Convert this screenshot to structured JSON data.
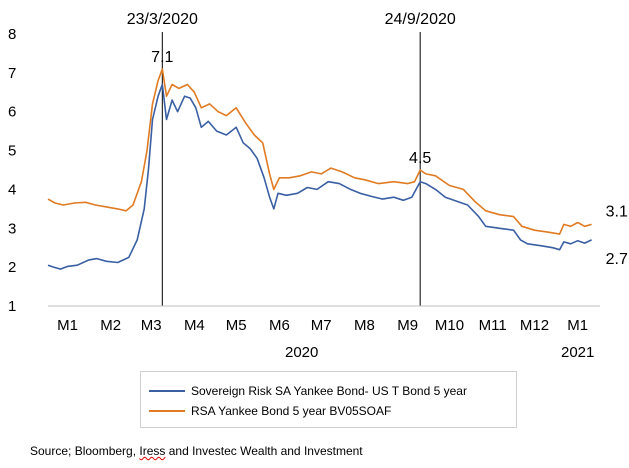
{
  "chart_data": {
    "type": "line",
    "ylim": [
      1,
      8
    ],
    "yticks": [
      "1",
      "2",
      "3",
      "4",
      "5",
      "6",
      "7",
      "8"
    ],
    "xlim": [
      "2020-01-01",
      "2021-01-31"
    ],
    "xticks": [
      {
        "label": "M1",
        "date": "2020-01-15"
      },
      {
        "label": "M2",
        "date": "2020-02-15"
      },
      {
        "label": "M3",
        "date": "2020-03-15"
      },
      {
        "label": "M4",
        "date": "2020-04-15"
      },
      {
        "label": "M5",
        "date": "2020-05-15"
      },
      {
        "label": "M6",
        "date": "2020-06-15"
      },
      {
        "label": "M7",
        "date": "2020-07-15"
      },
      {
        "label": "M8",
        "date": "2020-08-15"
      },
      {
        "label": "M9",
        "date": "2020-09-15"
      },
      {
        "label": "M10",
        "date": "2020-10-15"
      },
      {
        "label": "M11",
        "date": "2020-11-15"
      },
      {
        "label": "M12",
        "date": "2020-12-15"
      },
      {
        "label": "M1",
        "date": "2021-01-15"
      }
    ],
    "year_labels": [
      {
        "label": "2020",
        "date": "2020-07-01"
      },
      {
        "label": "2021",
        "date": "2021-01-15"
      }
    ],
    "series": [
      {
        "name": "Sovereign Risk SA Yankee Bond- US T Bond 5 year",
        "color": "#3a5fa3",
        "points": [
          [
            "2020-01-01",
            2.05
          ],
          [
            "2020-01-05",
            2.0
          ],
          [
            "2020-01-10",
            1.95
          ],
          [
            "2020-01-15",
            2.02
          ],
          [
            "2020-01-22",
            2.05
          ],
          [
            "2020-01-30",
            2.18
          ],
          [
            "2020-02-05",
            2.22
          ],
          [
            "2020-02-12",
            2.15
          ],
          [
            "2020-02-20",
            2.12
          ],
          [
            "2020-02-28",
            2.25
          ],
          [
            "2020-03-05",
            2.7
          ],
          [
            "2020-03-10",
            3.5
          ],
          [
            "2020-03-13",
            4.5
          ],
          [
            "2020-03-16",
            5.8
          ],
          [
            "2020-03-20",
            6.4
          ],
          [
            "2020-03-23",
            6.7
          ],
          [
            "2020-03-26",
            5.8
          ],
          [
            "2020-03-30",
            6.3
          ],
          [
            "2020-04-03",
            6.0
          ],
          [
            "2020-04-08",
            6.4
          ],
          [
            "2020-04-12",
            6.35
          ],
          [
            "2020-04-16",
            6.1
          ],
          [
            "2020-04-20",
            5.6
          ],
          [
            "2020-04-25",
            5.75
          ],
          [
            "2020-05-01",
            5.5
          ],
          [
            "2020-05-08",
            5.4
          ],
          [
            "2020-05-15",
            5.6
          ],
          [
            "2020-05-20",
            5.2
          ],
          [
            "2020-05-25",
            5.05
          ],
          [
            "2020-05-30",
            4.8
          ],
          [
            "2020-06-04",
            4.3
          ],
          [
            "2020-06-08",
            3.8
          ],
          [
            "2020-06-11",
            3.5
          ],
          [
            "2020-06-14",
            3.9
          ],
          [
            "2020-06-20",
            3.85
          ],
          [
            "2020-06-28",
            3.9
          ],
          [
            "2020-07-05",
            4.05
          ],
          [
            "2020-07-12",
            4.0
          ],
          [
            "2020-07-20",
            4.2
          ],
          [
            "2020-07-28",
            4.15
          ],
          [
            "2020-08-05",
            4.0
          ],
          [
            "2020-08-12",
            3.9
          ],
          [
            "2020-08-20",
            3.82
          ],
          [
            "2020-08-28",
            3.75
          ],
          [
            "2020-09-05",
            3.8
          ],
          [
            "2020-09-12",
            3.72
          ],
          [
            "2020-09-18",
            3.8
          ],
          [
            "2020-09-24",
            4.2
          ],
          [
            "2020-09-28",
            4.15
          ],
          [
            "2020-10-05",
            4.0
          ],
          [
            "2020-10-12",
            3.8
          ],
          [
            "2020-10-20",
            3.7
          ],
          [
            "2020-10-28",
            3.6
          ],
          [
            "2020-11-05",
            3.3
          ],
          [
            "2020-11-10",
            3.05
          ],
          [
            "2020-11-20",
            3.0
          ],
          [
            "2020-11-30",
            2.95
          ],
          [
            "2020-12-05",
            2.7
          ],
          [
            "2020-12-10",
            2.6
          ],
          [
            "2020-12-20",
            2.55
          ],
          [
            "2020-12-28",
            2.5
          ],
          [
            "2021-01-02",
            2.45
          ],
          [
            "2021-01-05",
            2.65
          ],
          [
            "2021-01-10",
            2.6
          ],
          [
            "2021-01-15",
            2.68
          ],
          [
            "2021-01-20",
            2.62
          ],
          [
            "2021-01-25",
            2.7
          ]
        ]
      },
      {
        "name": "RSA Yankee Bond 5 year BV05SOAF",
        "color": "#e07b24",
        "points": [
          [
            "2020-01-01",
            3.75
          ],
          [
            "2020-01-06",
            3.65
          ],
          [
            "2020-01-12",
            3.6
          ],
          [
            "2020-01-20",
            3.65
          ],
          [
            "2020-01-28",
            3.67
          ],
          [
            "2020-02-04",
            3.6
          ],
          [
            "2020-02-12",
            3.55
          ],
          [
            "2020-02-20",
            3.5
          ],
          [
            "2020-02-26",
            3.45
          ],
          [
            "2020-03-02",
            3.6
          ],
          [
            "2020-03-08",
            4.2
          ],
          [
            "2020-03-12",
            5.0
          ],
          [
            "2020-03-16",
            6.2
          ],
          [
            "2020-03-20",
            6.8
          ],
          [
            "2020-03-23",
            7.1
          ],
          [
            "2020-03-26",
            6.4
          ],
          [
            "2020-03-30",
            6.7
          ],
          [
            "2020-04-04",
            6.6
          ],
          [
            "2020-04-10",
            6.7
          ],
          [
            "2020-04-15",
            6.5
          ],
          [
            "2020-04-20",
            6.1
          ],
          [
            "2020-04-26",
            6.2
          ],
          [
            "2020-05-02",
            6.0
          ],
          [
            "2020-05-08",
            5.9
          ],
          [
            "2020-05-15",
            6.1
          ],
          [
            "2020-05-22",
            5.7
          ],
          [
            "2020-05-28",
            5.4
          ],
          [
            "2020-06-03",
            5.2
          ],
          [
            "2020-06-08",
            4.4
          ],
          [
            "2020-06-11",
            4.0
          ],
          [
            "2020-06-15",
            4.3
          ],
          [
            "2020-06-22",
            4.3
          ],
          [
            "2020-06-30",
            4.35
          ],
          [
            "2020-07-08",
            4.45
          ],
          [
            "2020-07-15",
            4.4
          ],
          [
            "2020-07-22",
            4.55
          ],
          [
            "2020-07-30",
            4.45
          ],
          [
            "2020-08-08",
            4.3
          ],
          [
            "2020-08-15",
            4.25
          ],
          [
            "2020-08-25",
            4.15
          ],
          [
            "2020-09-05",
            4.2
          ],
          [
            "2020-09-15",
            4.15
          ],
          [
            "2020-09-20",
            4.2
          ],
          [
            "2020-09-24",
            4.5
          ],
          [
            "2020-09-28",
            4.4
          ],
          [
            "2020-10-05",
            4.35
          ],
          [
            "2020-10-15",
            4.1
          ],
          [
            "2020-10-25",
            4.0
          ],
          [
            "2020-11-02",
            3.7
          ],
          [
            "2020-11-10",
            3.45
          ],
          [
            "2020-11-20",
            3.35
          ],
          [
            "2020-11-30",
            3.3
          ],
          [
            "2020-12-06",
            3.05
          ],
          [
            "2020-12-15",
            2.95
          ],
          [
            "2020-12-25",
            2.9
          ],
          [
            "2021-01-02",
            2.85
          ],
          [
            "2021-01-05",
            3.1
          ],
          [
            "2021-01-10",
            3.05
          ],
          [
            "2021-01-15",
            3.15
          ],
          [
            "2021-01-20",
            3.05
          ],
          [
            "2021-01-25",
            3.1
          ]
        ]
      }
    ],
    "annotations": [
      {
        "label": "23/3/2020",
        "date": "2020-03-23",
        "vline": true
      },
      {
        "label": "24/9/2020",
        "date": "2020-09-24",
        "vline": true
      },
      {
        "label": "7.1",
        "date": "2020-03-23",
        "value": 7.1
      },
      {
        "label": "4.5",
        "date": "2020-09-24",
        "value": 4.5
      },
      {
        "label": "3.1",
        "date": "2021-01-25",
        "value": 3.1
      },
      {
        "label": "2.7",
        "date": "2021-01-25",
        "value": 2.7
      }
    ],
    "legend": "bottom"
  },
  "source": {
    "prefix": "Source; Bloomberg, ",
    "highlight": "Iress",
    "suffix": " and Investec Wealth and Investment"
  }
}
